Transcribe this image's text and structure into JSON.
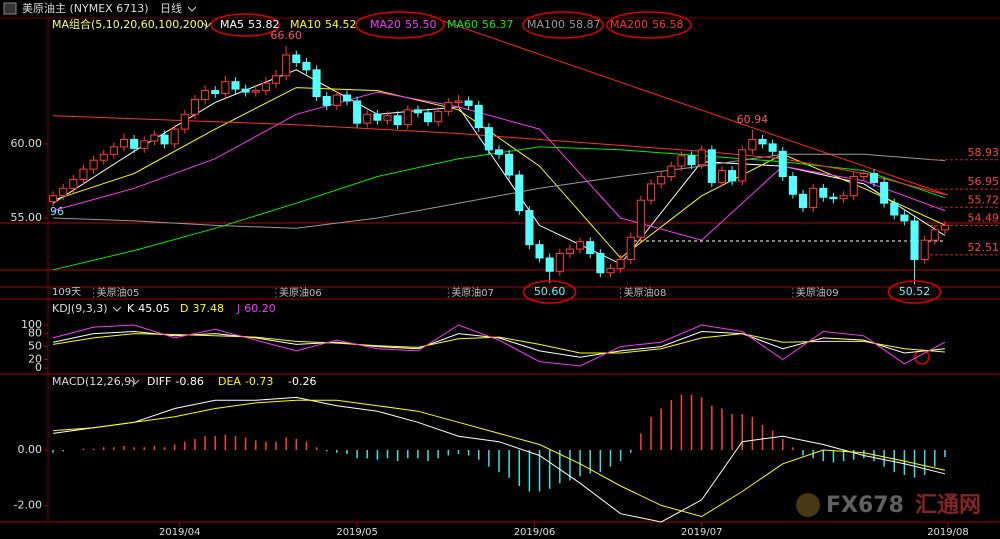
{
  "header": {
    "title": "美原油主 (NYMEX 6713)",
    "period": "日线",
    "watermark": {
      "brand": "FX678",
      "name": "汇通网"
    }
  },
  "chart_data": [
    {
      "type": "candlestick",
      "legend_title": "MA组合(5,10,20,60,100,200)",
      "left_edge_label": "96",
      "period_count": "109天",
      "xlim": [
        -0.5,
        88.5
      ],
      "ylim": [
        50.34,
        68.5
      ],
      "yticks": [
        {
          "value": 55,
          "label": "55.00"
        },
        {
          "value": 60,
          "label": "60.00"
        }
      ],
      "xticks": [
        {
          "value": 4,
          "label": "美原油05"
        },
        {
          "value": 22,
          "label": "美原油06"
        },
        {
          "value": 39,
          "label": "美原油07"
        },
        {
          "value": 56,
          "label": "美原油08"
        },
        {
          "value": 73,
          "label": "美原油09"
        }
      ],
      "up_color": "#ff3c3c",
      "down_color": "#54ffff",
      "candles": [
        [
          56.1,
          56.8,
          55.8,
          56.5
        ],
        [
          56.5,
          57.3,
          56.2,
          57.0
        ],
        [
          57.0,
          57.9,
          56.7,
          57.6
        ],
        [
          57.6,
          58.6,
          57.3,
          58.3
        ],
        [
          58.3,
          59.2,
          58.0,
          58.9
        ],
        [
          58.9,
          59.6,
          58.6,
          59.3
        ],
        [
          59.3,
          60.1,
          59.0,
          59.8
        ],
        [
          59.8,
          60.7,
          59.5,
          60.3
        ],
        [
          60.3,
          60.6,
          59.4,
          59.7
        ],
        [
          59.7,
          60.5,
          59.4,
          60.2
        ],
        [
          60.2,
          60.9,
          59.9,
          60.6
        ],
        [
          60.6,
          60.9,
          59.7,
          60.0
        ],
        [
          60.0,
          61.3,
          59.7,
          61.0
        ],
        [
          61.0,
          62.3,
          60.7,
          62.0
        ],
        [
          62.0,
          63.3,
          61.7,
          63.0
        ],
        [
          63.0,
          64.0,
          62.7,
          63.6
        ],
        [
          63.6,
          63.9,
          63.1,
          63.4
        ],
        [
          63.4,
          64.6,
          63.1,
          64.2
        ],
        [
          64.2,
          64.5,
          63.4,
          63.7
        ],
        [
          63.7,
          64.0,
          63.2,
          63.5
        ],
        [
          63.5,
          64.0,
          63.2,
          63.6
        ],
        [
          63.6,
          64.5,
          63.3,
          64.1
        ],
        [
          64.1,
          65.0,
          63.8,
          64.6
        ],
        [
          64.6,
          66.6,
          64.3,
          66.0
        ],
        [
          66.0,
          66.3,
          65.2,
          65.5
        ],
        [
          65.5,
          65.8,
          64.7,
          65.0
        ],
        [
          65.0,
          65.3,
          62.9,
          63.2
        ],
        [
          63.2,
          63.5,
          62.3,
          62.6
        ],
        [
          62.6,
          63.6,
          62.3,
          63.3
        ],
        [
          63.3,
          63.6,
          62.6,
          62.9
        ],
        [
          62.9,
          63.2,
          61.1,
          61.4
        ],
        [
          61.4,
          62.3,
          61.1,
          62.0
        ],
        [
          62.0,
          62.3,
          61.3,
          61.6
        ],
        [
          61.6,
          62.2,
          61.3,
          61.9
        ],
        [
          61.9,
          62.2,
          61.0,
          61.3
        ],
        [
          61.3,
          62.6,
          61.0,
          62.3
        ],
        [
          62.3,
          62.6,
          61.8,
          62.1
        ],
        [
          62.1,
          62.4,
          61.2,
          61.5
        ],
        [
          61.5,
          62.5,
          61.2,
          62.2
        ],
        [
          62.2,
          63.1,
          61.9,
          62.8
        ],
        [
          62.8,
          63.3,
          62.5,
          62.9
        ],
        [
          62.9,
          63.2,
          62.3,
          62.6
        ],
        [
          62.6,
          62.9,
          60.8,
          61.1
        ],
        [
          61.1,
          61.4,
          59.3,
          59.6
        ],
        [
          59.6,
          59.9,
          59.0,
          59.3
        ],
        [
          59.3,
          59.6,
          57.6,
          57.9
        ],
        [
          57.9,
          58.2,
          55.2,
          55.5
        ],
        [
          55.5,
          55.8,
          52.9,
          53.2
        ],
        [
          53.2,
          53.5,
          52.0,
          52.3
        ],
        [
          52.3,
          52.6,
          50.6,
          51.4
        ],
        [
          51.4,
          52.9,
          51.1,
          52.6
        ],
        [
          52.6,
          53.2,
          52.3,
          52.9
        ],
        [
          52.9,
          53.7,
          52.6,
          53.4
        ],
        [
          53.4,
          53.7,
          52.3,
          52.6
        ],
        [
          52.6,
          52.9,
          51.0,
          51.3
        ],
        [
          51.3,
          51.9,
          51.0,
          51.6
        ],
        [
          51.6,
          52.5,
          51.3,
          52.2
        ],
        [
          52.2,
          54.0,
          51.9,
          53.7
        ],
        [
          53.7,
          56.5,
          53.4,
          56.2
        ],
        [
          56.2,
          57.6,
          55.9,
          57.3
        ],
        [
          57.3,
          58.1,
          57.0,
          57.8
        ],
        [
          57.8,
          58.8,
          57.5,
          58.5
        ],
        [
          58.5,
          59.5,
          58.2,
          59.2
        ],
        [
          59.2,
          59.5,
          58.3,
          58.6
        ],
        [
          58.6,
          59.9,
          58.3,
          59.6
        ],
        [
          59.6,
          59.9,
          57.1,
          57.4
        ],
        [
          57.4,
          58.5,
          57.1,
          58.2
        ],
        [
          58.2,
          58.5,
          57.2,
          57.5
        ],
        [
          57.5,
          59.9,
          57.2,
          59.6
        ],
        [
          59.6,
          60.94,
          59.3,
          60.3
        ],
        [
          60.3,
          60.6,
          59.7,
          60.0
        ],
        [
          60.0,
          60.3,
          59.2,
          59.5
        ],
        [
          59.5,
          59.8,
          57.5,
          57.8
        ],
        [
          57.8,
          58.1,
          56.3,
          56.6
        ],
        [
          56.6,
          56.9,
          55.4,
          55.7
        ],
        [
          55.7,
          57.3,
          55.4,
          57.0
        ],
        [
          57.0,
          57.3,
          56.1,
          56.4
        ],
        [
          56.4,
          56.7,
          56.0,
          56.3
        ],
        [
          56.3,
          56.8,
          56.0,
          56.5
        ],
        [
          56.5,
          58.1,
          56.2,
          57.8
        ],
        [
          57.8,
          58.3,
          57.5,
          58.0
        ],
        [
          58.0,
          58.3,
          57.1,
          57.4
        ],
        [
          57.4,
          57.7,
          55.7,
          56.0
        ],
        [
          56.0,
          56.3,
          54.9,
          55.2
        ],
        [
          55.2,
          55.5,
          54.5,
          54.8
        ],
        [
          54.8,
          55.1,
          50.52,
          52.2
        ],
        [
          52.2,
          53.8,
          51.9,
          53.5
        ],
        [
          53.5,
          54.5,
          53.2,
          54.2
        ],
        [
          54.2,
          54.8,
          53.9,
          54.5
        ]
      ],
      "series": [
        {
          "name": "MA5",
          "legend_value": "53.82",
          "color": "#ffffff",
          "x": [
            0,
            8,
            16,
            24,
            32,
            40,
            48,
            56,
            64,
            72,
            80,
            88
          ],
          "values": [
            56,
            59.5,
            62.8,
            65,
            62,
            62.5,
            54.5,
            51.9,
            58.8,
            58.5,
            57.3,
            53.82
          ]
        },
        {
          "name": "MA10",
          "legend_value": "54.52",
          "color": "#ffff00",
          "x": [
            0,
            8,
            16,
            24,
            32,
            40,
            48,
            56,
            64,
            72,
            80,
            88
          ],
          "values": [
            56.2,
            58,
            61,
            63.8,
            63.6,
            62.3,
            58.5,
            52.3,
            56.5,
            59.3,
            57,
            54.52
          ]
        },
        {
          "name": "MA20",
          "legend_value": "55.50",
          "color": "#ff33ff",
          "x": [
            0,
            8,
            16,
            24,
            32,
            40,
            48,
            56,
            64,
            72,
            80,
            88
          ],
          "values": [
            55.5,
            57,
            59,
            62,
            63.5,
            62.5,
            61,
            55,
            53.5,
            58.5,
            57.5,
            55.5
          ]
        },
        {
          "name": "MA60",
          "legend_value": "56.37",
          "color": "#00ee00",
          "x": [
            0,
            8,
            16,
            24,
            32,
            40,
            48,
            56,
            64,
            72,
            80,
            88
          ],
          "values": [
            51.5,
            52.8,
            54.3,
            56,
            57.8,
            59,
            59.8,
            59.6,
            59.2,
            58.8,
            58.2,
            56.37
          ]
        },
        {
          "name": "MA100",
          "legend_value": "58.87",
          "color": "#999999",
          "x": [
            0,
            8,
            16,
            24,
            32,
            40,
            48,
            56,
            64,
            72,
            80,
            88
          ],
          "values": [
            55,
            54.8,
            54.5,
            54.3,
            55,
            56,
            57,
            57.8,
            58.5,
            59.3,
            59.3,
            58.87
          ]
        },
        {
          "name": "MA200",
          "legend_value": "56.58",
          "color": "#ff3030",
          "x": [
            0,
            8,
            16,
            24,
            32,
            40,
            48,
            56,
            64,
            72,
            80,
            88
          ],
          "values": [
            61.9,
            61.7,
            61.5,
            61.3,
            61,
            60.7,
            60.3,
            59.9,
            59.5,
            59,
            58,
            56.58
          ]
        }
      ],
      "annotations": [
        {
          "label": "66.60",
          "x": 23,
          "value": 66.6
        },
        {
          "label": "60.94",
          "x": 69,
          "value": 60.94
        },
        {
          "label": "50.60",
          "x": 49,
          "value": 50.6
        },
        {
          "label": "50.52",
          "x": 85,
          "value": 50.52
        }
      ],
      "levels": [
        58.93,
        56.95,
        55.72,
        54.49,
        52.51
      ]
    },
    {
      "type": "line",
      "title": "KDJ(9,3,3)",
      "xlim": [
        -0.5,
        88.5
      ],
      "ylim": [
        -9,
        151
      ],
      "yticks": [
        0,
        20,
        50,
        80,
        100
      ],
      "x": [
        0,
        4,
        8,
        12,
        16,
        20,
        24,
        28,
        32,
        36,
        40,
        44,
        48,
        52,
        56,
        60,
        64,
        68,
        72,
        76,
        80,
        84,
        88
      ],
      "series": [
        {
          "name": "K",
          "legend_value": "45.05",
          "color": "#ffffff",
          "values": [
            60,
            80,
            85,
            75,
            80,
            70,
            55,
            60,
            50,
            45,
            80,
            70,
            40,
            25,
            40,
            50,
            85,
            80,
            45,
            70,
            65,
            35,
            45.05
          ]
        },
        {
          "name": "D",
          "legend_value": "37.48",
          "color": "#ffff00",
          "values": [
            55,
            70,
            80,
            78,
            75,
            72,
            62,
            58,
            52,
            48,
            68,
            72,
            55,
            35,
            35,
            45,
            70,
            80,
            60,
            62,
            62,
            45,
            37.48
          ]
        },
        {
          "name": "J",
          "legend_value": "60.20",
          "color": "#ff33ff",
          "values": [
            70,
            95,
            100,
            70,
            90,
            65,
            40,
            65,
            45,
            40,
            100,
            65,
            15,
            5,
            50,
            60,
            100,
            85,
            20,
            85,
            75,
            10,
            60.2
          ]
        }
      ]
    },
    {
      "type": "macd",
      "title": "MACD(12,26,9)",
      "macd_label": "-0.26",
      "xlim": [
        -0.5,
        88.5
      ],
      "ylim": [
        -2.6,
        2.6
      ],
      "yticks": [
        {
          "value": 0,
          "label": "0.00"
        },
        {
          "value": -2,
          "label": "-2.00"
        }
      ],
      "xticks": [
        {
          "value": 12.5,
          "label": "2019/04"
        },
        {
          "value": 30,
          "label": "2019/05"
        },
        {
          "value": 47.5,
          "label": "2019/06"
        },
        {
          "value": 64,
          "label": "2019/07"
        },
        {
          "value": 88.3,
          "label": "2019/08"
        }
      ],
      "histogram": [
        -0.1,
        -0.05,
        0,
        0.05,
        0.05,
        0.1,
        0.1,
        0.15,
        0.1,
        0.1,
        0.15,
        0.1,
        0.2,
        0.3,
        0.4,
        0.5,
        0.5,
        0.55,
        0.5,
        0.45,
        0.35,
        0.3,
        0.3,
        0.45,
        0.4,
        0.3,
        0.1,
        -0.05,
        -0.1,
        -0.15,
        -0.3,
        -0.3,
        -0.35,
        -0.3,
        -0.4,
        -0.3,
        -0.3,
        -0.4,
        -0.3,
        -0.2,
        -0.15,
        -0.2,
        -0.35,
        -0.6,
        -0.8,
        -1.0,
        -1.3,
        -1.5,
        -1.5,
        -1.4,
        -1.2,
        -1.1,
        -0.95,
        -0.85,
        -0.8,
        -0.6,
        -0.4,
        -0.1,
        0.6,
        1.2,
        1.5,
        1.8,
        2.0,
        2.0,
        1.9,
        1.6,
        1.5,
        1.3,
        1.3,
        1.2,
        0.9,
        0.7,
        0.4,
        0.1,
        -0.2,
        -0.3,
        -0.4,
        -0.45,
        -0.4,
        -0.35,
        -0.3,
        -0.4,
        -0.6,
        -0.8,
        -0.9,
        -1.0,
        -0.9,
        -0.6,
        -0.26
      ],
      "x": [
        0,
        4,
        8,
        12,
        16,
        20,
        24,
        28,
        32,
        36,
        40,
        44,
        48,
        52,
        56,
        60,
        64,
        68,
        72,
        76,
        80,
        84,
        88
      ],
      "series": [
        {
          "name": "DIFF",
          "legend_value": "-0.86",
          "color": "#ffffff",
          "values": [
            0.6,
            0.8,
            1.0,
            1.5,
            1.8,
            1.8,
            1.9,
            1.6,
            1.4,
            1.0,
            0.5,
            0.3,
            -0.2,
            -1.2,
            -2.3,
            -2.6,
            -1.8,
            0.3,
            0.5,
            0.2,
            -0.2,
            -0.5,
            -0.86
          ]
        },
        {
          "name": "DEA",
          "legend_value": "-0.73",
          "color": "#ffff00",
          "values": [
            0.7,
            0.8,
            1.0,
            1.2,
            1.5,
            1.7,
            1.8,
            1.8,
            1.6,
            1.4,
            1.0,
            0.6,
            0.2,
            -0.5,
            -1.3,
            -2.0,
            -2.4,
            -1.5,
            -0.5,
            0,
            -0.1,
            -0.4,
            -0.73
          ]
        }
      ]
    }
  ]
}
